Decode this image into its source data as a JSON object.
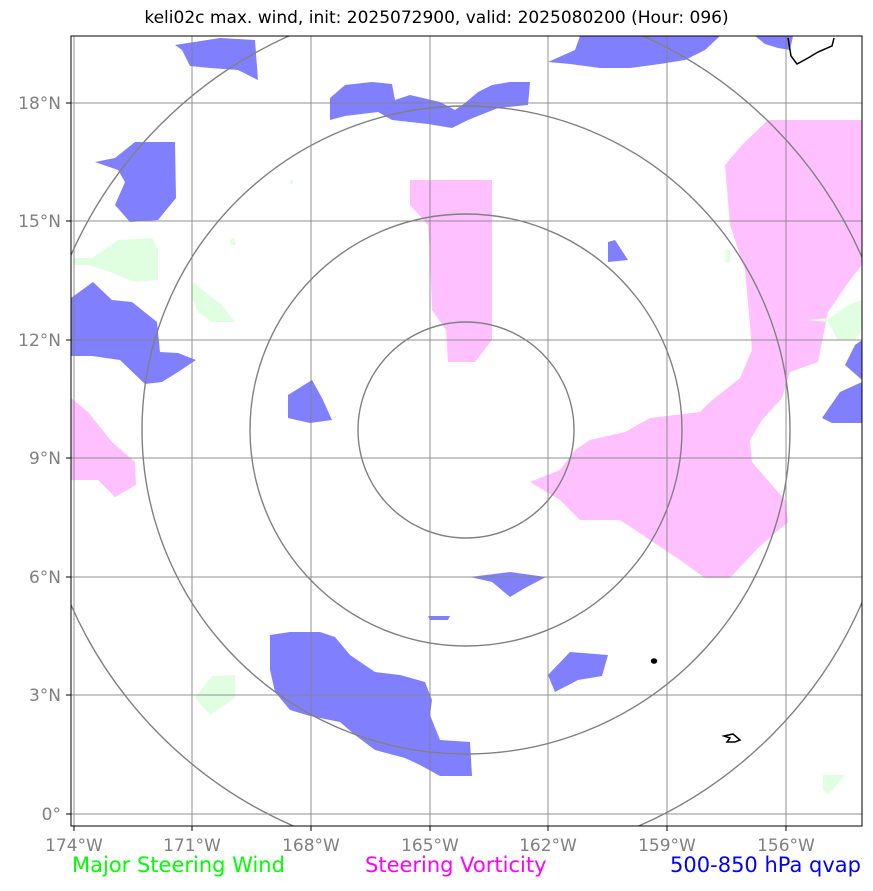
{
  "title": "keli02c max. wind, init: 2025072900, valid: 2025080200 (Hour: 096)",
  "axes": {
    "lon_ticks": [
      "174°W",
      "171°W",
      "168°W",
      "165°W",
      "162°W",
      "159°W",
      "156°W"
    ],
    "lat_ticks": [
      "18°N",
      "15°N",
      "12°N",
      "9°N",
      "6°N",
      "3°N",
      "0°"
    ]
  },
  "legend": [
    {
      "label": "Major Steering Wind",
      "color": "#00ff00"
    },
    {
      "label": "Steering Vorticity",
      "color": "#ff00ff"
    },
    {
      "label": "500-850 hPa qvap",
      "color": "#0000ff"
    }
  ],
  "colors": {
    "qvap_fill": "#8080ff",
    "vorticity_fill": "#ffc0ff",
    "wind_fill": "#e0ffe0",
    "grid": "#808080",
    "range_rings": "#808080",
    "coastline": "#000000"
  },
  "map": {
    "lon_range": [
      -174,
      -154
    ],
    "lat_range": [
      -0.3,
      19.7
    ],
    "center": {
      "lon": "163.9°W",
      "lat": "9.7°N"
    },
    "range_rings": 4,
    "gridlines": true
  }
}
